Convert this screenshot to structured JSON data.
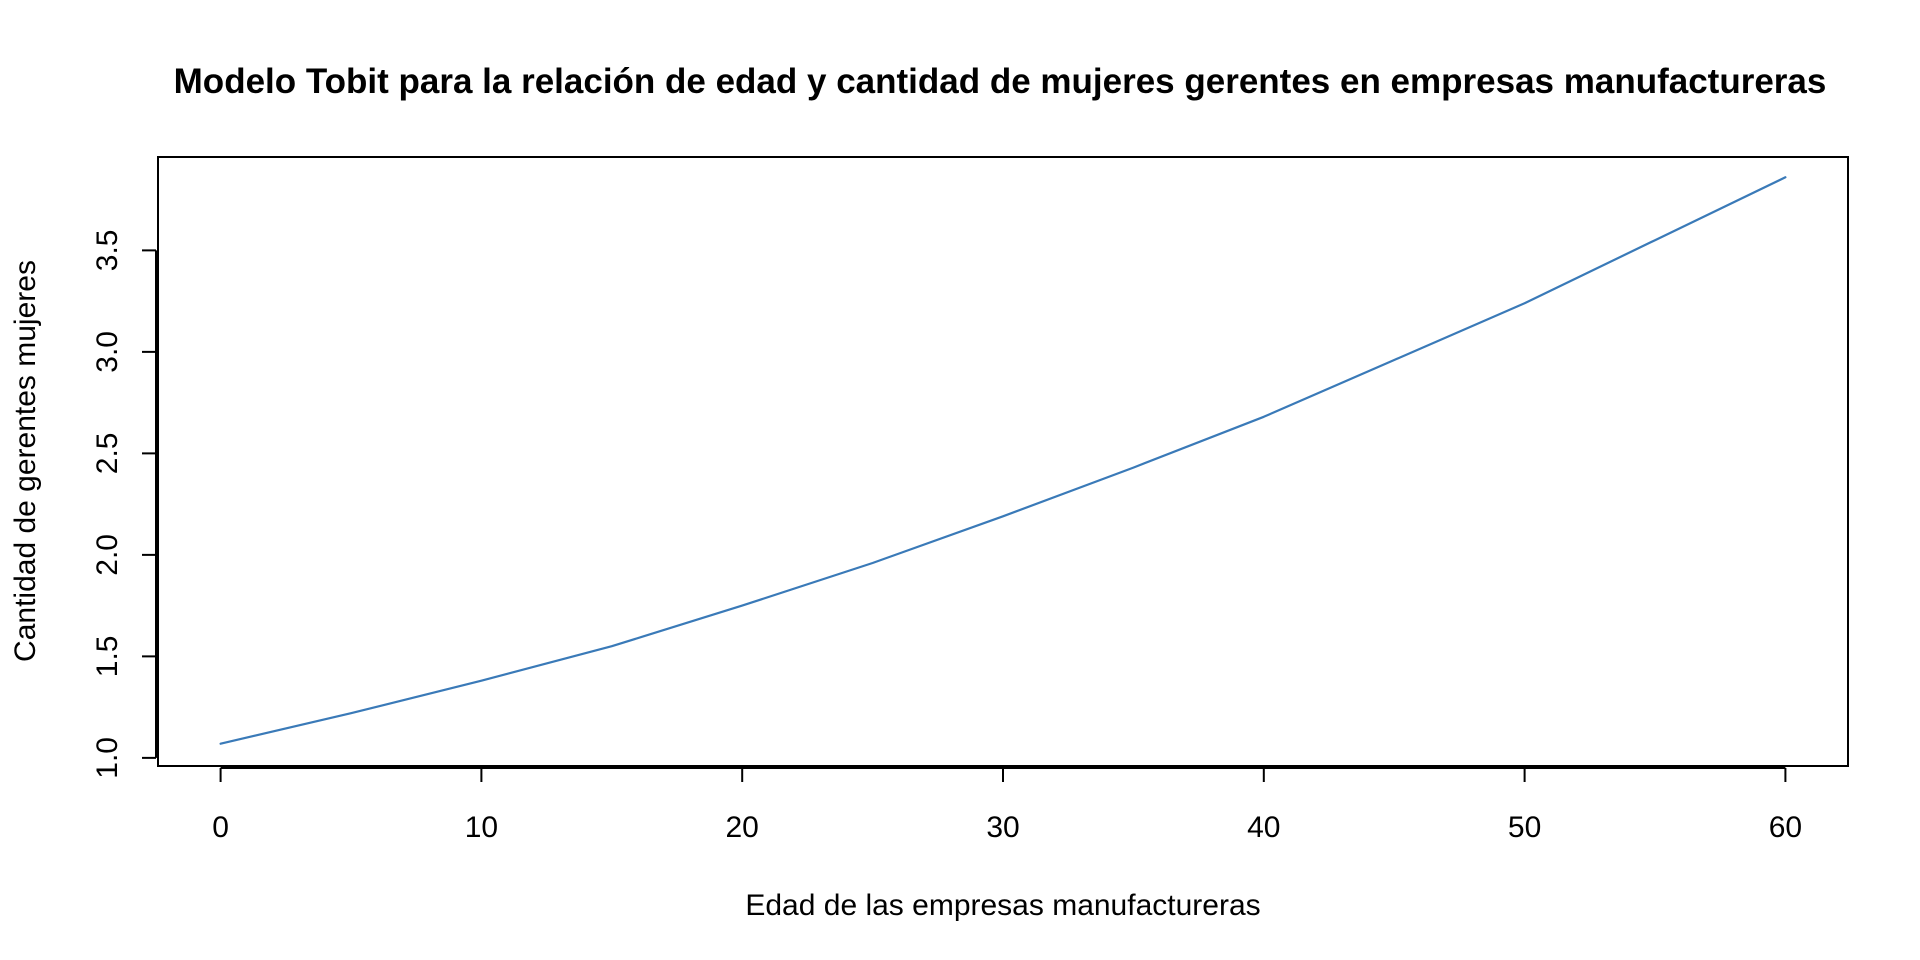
{
  "chart_data": {
    "type": "line",
    "title": "Modelo Tobit para la relación de edad y cantidad de mujeres gerentes en empresas manufactureras",
    "xlabel": "Edad de las empresas manufactureras",
    "ylabel": "Cantidad de gerentes mujeres",
    "xlim": [
      -2.4,
      62.4
    ],
    "ylim": [
      0.96,
      3.96
    ],
    "x_ticks": [
      0,
      10,
      20,
      30,
      40,
      50,
      60
    ],
    "x_tick_labels": [
      "0",
      "10",
      "20",
      "30",
      "40",
      "50",
      "60"
    ],
    "y_ticks": [
      1.0,
      1.5,
      2.0,
      2.5,
      3.0,
      3.5
    ],
    "y_tick_labels": [
      "1.0",
      "1.5",
      "2.0",
      "2.5",
      "3.0",
      "3.5"
    ],
    "grid": false,
    "series": [
      {
        "color": "#3a7ab8",
        "x": [
          0,
          5,
          10,
          15,
          20,
          25,
          30,
          35,
          40,
          45,
          50,
          55,
          60
        ],
        "y": [
          1.07,
          1.22,
          1.38,
          1.55,
          1.75,
          1.96,
          2.19,
          2.43,
          2.68,
          2.96,
          3.24,
          3.55,
          3.86
        ]
      }
    ]
  }
}
